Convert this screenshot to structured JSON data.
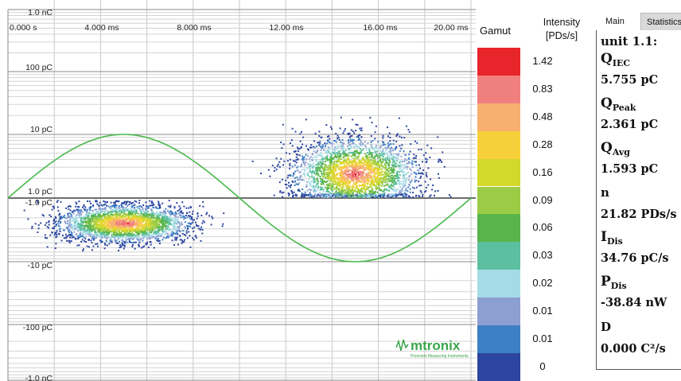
{
  "chart_data": {
    "type": "scatter",
    "x_ticks": [
      "0.000 s",
      "4.000 ms",
      "8.000 ms",
      "12.00 ms",
      "16.00 ms",
      "20.00 ms"
    ],
    "y_ticks": [
      "1.0 nC",
      "100 pC",
      "10 pC",
      "1.0 pC",
      "-1.0 pC",
      "-10 pC",
      "-100 pC",
      "-1.0 nC"
    ],
    "sine_reference": {
      "color": "#49b94b",
      "period_ms": 20,
      "phase": "zero-crossing at 0 ms, peak near 5 ms"
    },
    "clusters": [
      {
        "name": "negative",
        "x_range_ms": [
          2.0,
          7.8
        ],
        "core_ms": 5.0,
        "charge_range_pC": [
          -20,
          -1
        ],
        "peak_pC": -2.4
      },
      {
        "name": "positive",
        "x_range_ms": [
          12.0,
          17.5
        ],
        "core_ms": 15.0,
        "charge_range_pC": [
          1,
          15
        ],
        "peak_pC": 2.4
      }
    ]
  },
  "gamut": {
    "title": "Gamut",
    "intensity_title_line1": "Intensity",
    "intensity_title_line2": "[PDs/s]",
    "levels": [
      {
        "label": "1.42",
        "color": "#e8252b"
      },
      {
        "label": "0.83",
        "color": "#f08080"
      },
      {
        "label": "0.48",
        "color": "#f7b06f"
      },
      {
        "label": "0.28",
        "color": "#f6d03a"
      },
      {
        "label": "0.16",
        "color": "#d3d82b"
      },
      {
        "label": "0.09",
        "color": "#9ccc45"
      },
      {
        "label": "0.06",
        "color": "#59b54b"
      },
      {
        "label": "0.03",
        "color": "#5bbfa0"
      },
      {
        "label": "0.02",
        "color": "#a6dbe6"
      },
      {
        "label": "0.01",
        "color": "#8d9ed0"
      },
      {
        "label": "0.01",
        "color": "#3d80c4"
      },
      {
        "label": "0",
        "color": "#2c45a0"
      }
    ]
  },
  "tabs": {
    "main": "Main",
    "statistics": "Statistics"
  },
  "stats": {
    "unit": "unit 1.1:",
    "q": "Q",
    "q_iec_sub": "IEC",
    "q_iec_value": "5.755 pC",
    "q_peak_sub": "Peak",
    "q_peak_value": "2.361 pC",
    "q_avg_sub": "Avg",
    "q_avg_value": "1.593 pC",
    "n_label": "n",
    "n_value": "21.82 PDs/s",
    "i": "I",
    "i_sub": "Dis",
    "i_value": "34.76 pC/s",
    "p": "P",
    "p_sub": "Dis",
    "p_value": "-38.84 nW",
    "d_label": "D",
    "d_value": "0.000 C²/s"
  },
  "logo": {
    "text": "mtronix",
    "tagline": "Precision Measuring Instruments"
  }
}
